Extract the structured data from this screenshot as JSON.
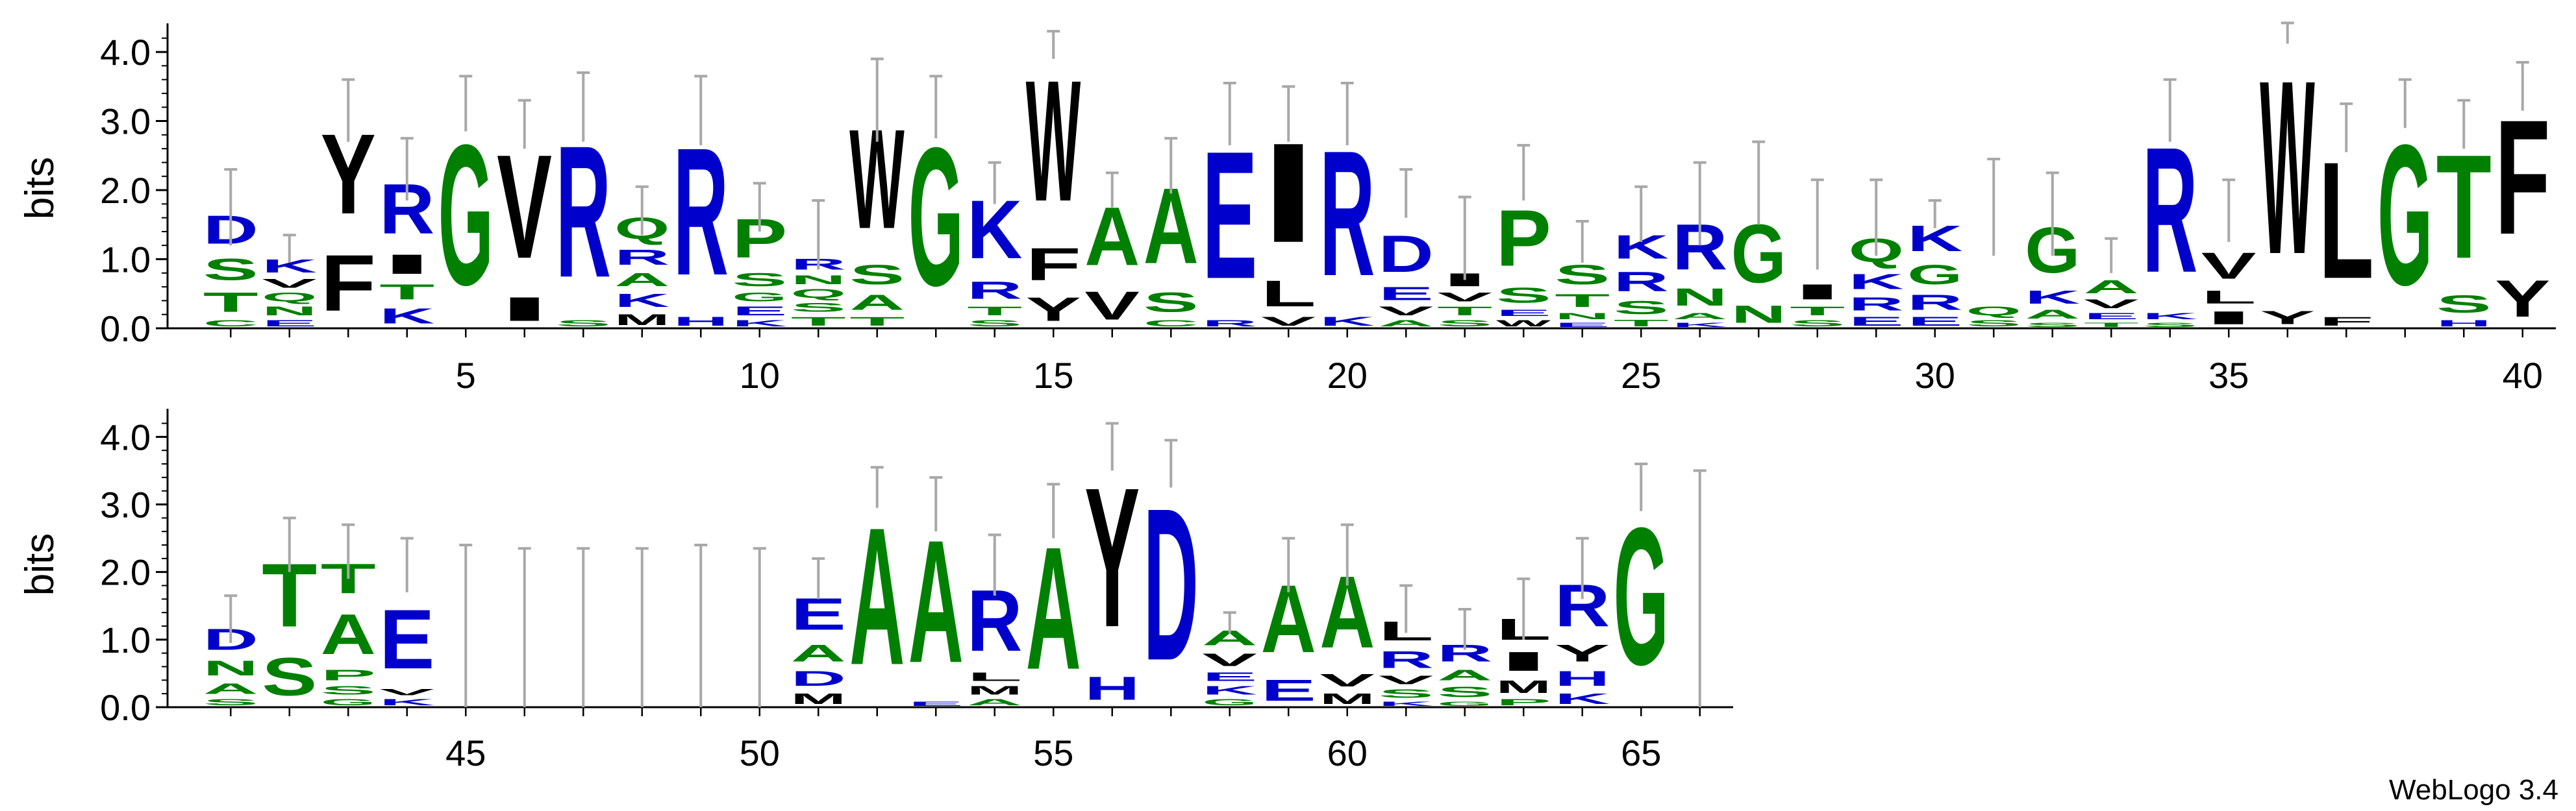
{
  "chart_data": {
    "type": "sequence-logo",
    "title": "",
    "ylabel": "bits",
    "ylim": [
      0,
      4.32
    ],
    "yticks": [
      "0.0",
      "1.0",
      "2.0",
      "3.0",
      "4.0"
    ],
    "credit": "WebLogo 3.4",
    "colors": {
      "G": "#008000",
      "S": "#008000",
      "T": "#008000",
      "Y": "#008000",
      "C": "#008000",
      "N": "#008000",
      "Q": "#008000",
      "K": "#0000cc",
      "R": "#0000cc",
      "H": "#0000cc",
      "D": "#0000cc",
      "E": "#0000cc",
      "A": "#008000",
      "V": "#000000",
      "L": "#000000",
      "I": "#000000",
      "P": "#008000",
      "W": "#000000",
      "F": "#000000",
      "M": "#000000",
      "ink": "#000000",
      "errorbar": "#a8a8a8"
    },
    "color_overrides": {
      "Y": "#000000",
      "A": "#008000",
      "P": "#008000",
      "W": "#000000",
      "F": "#000000"
    },
    "rows": [
      {
        "first": 1,
        "last": 40,
        "xticks": [
          "5",
          "10",
          "15",
          "20",
          "25",
          "30",
          "35",
          "40"
        ]
      },
      {
        "first": 41,
        "last": 66,
        "xticks": [
          "45",
          "50",
          "55",
          "60",
          "65"
        ]
      }
    ],
    "positions": [
      {
        "pos": 1,
        "total": 1.75,
        "err": 0.55,
        "stack": [
          [
            "C",
            0.15
          ],
          [
            "T",
            0.45
          ],
          [
            "S",
            0.5
          ],
          [
            "D",
            0.65
          ]
        ]
      },
      {
        "pos": 2,
        "total": 1.15,
        "err": 0.2,
        "stack": [
          [
            "E",
            0.15
          ],
          [
            "N",
            0.2
          ],
          [
            "Q",
            0.2
          ],
          [
            "V",
            0.2
          ],
          [
            "K",
            0.3
          ]
        ]
      },
      {
        "pos": 3,
        "total": 3.15,
        "err": 0.45,
        "stack": [
          [
            "F",
            1.3
          ],
          [
            "Y",
            1.85
          ]
        ]
      },
      {
        "pos": 4,
        "total": 2.3,
        "err": 0.45,
        "stack": [
          [
            "K",
            0.35
          ],
          [
            "T",
            0.35
          ],
          [
            "I",
            0.45
          ],
          [
            "R",
            1.15
          ]
        ]
      },
      {
        "pos": 5,
        "total": 3.25,
        "err": 0.4,
        "stack": [
          [
            "G",
            3.25
          ]
        ]
      },
      {
        "pos": 6,
        "total": 2.95,
        "err": 0.35,
        "stack": [
          [
            "I",
            0.55
          ],
          [
            "V",
            2.4
          ]
        ]
      },
      {
        "pos": 7,
        "total": 3.2,
        "err": 0.5,
        "stack": [
          [
            "S",
            0.15
          ],
          [
            "R",
            3.05
          ]
        ]
      },
      {
        "pos": 8,
        "total": 1.7,
        "err": 0.35,
        "stack": [
          [
            "M",
            0.25
          ],
          [
            "K",
            0.3
          ],
          [
            "A",
            0.3
          ],
          [
            "R",
            0.35
          ],
          [
            "Q",
            0.5
          ]
        ]
      },
      {
        "pos": 9,
        "total": 3.15,
        "err": 0.5,
        "stack": [
          [
            "H",
            0.2
          ],
          [
            "R",
            2.95
          ]
        ]
      },
      {
        "pos": 10,
        "total": 1.75,
        "err": 0.35,
        "stack": [
          [
            "K",
            0.15
          ],
          [
            "E",
            0.2
          ],
          [
            "G",
            0.2
          ],
          [
            "S",
            0.3
          ],
          [
            "P",
            0.9
          ]
        ]
      },
      {
        "pos": 11,
        "total": 1.35,
        "err": 0.5,
        "stack": [
          [
            "T",
            0.2
          ],
          [
            "S",
            0.2
          ],
          [
            "Q",
            0.2
          ],
          [
            "N",
            0.2
          ],
          [
            "R",
            0.25
          ]
        ]
      },
      {
        "pos": 12,
        "total": 3.3,
        "err": 0.6,
        "stack": [
          [
            "T",
            0.2
          ],
          [
            "A",
            0.35
          ],
          [
            "S",
            0.45
          ],
          [
            "W",
            2.3
          ]
        ]
      },
      {
        "pos": 13,
        "total": 3.2,
        "err": 0.45,
        "stack": [
          [
            "G",
            3.2
          ]
        ]
      },
      {
        "pos": 14,
        "total": 2.1,
        "err": 0.3,
        "stack": [
          [
            "S",
            0.15
          ],
          [
            "T",
            0.2
          ],
          [
            "R",
            0.4
          ],
          [
            "K",
            1.35
          ]
        ]
      },
      {
        "pos": 15,
        "total": 4.1,
        "err": 0.2,
        "stack": [
          [
            "Y",
            0.55
          ],
          [
            "F",
            0.75
          ],
          [
            "W",
            2.8
          ]
        ]
      },
      {
        "pos": 16,
        "total": 2.0,
        "err": 0.25,
        "stack": [
          [
            "V",
            0.65
          ],
          [
            "A",
            1.35
          ]
        ]
      },
      {
        "pos": 17,
        "total": 2.35,
        "err": 0.4,
        "stack": [
          [
            "C",
            0.15
          ],
          [
            "S",
            0.45
          ],
          [
            "A",
            1.75
          ]
        ]
      },
      {
        "pos": 18,
        "total": 3.1,
        "err": 0.45,
        "stack": [
          [
            "R",
            0.15
          ],
          [
            "E",
            2.95
          ]
        ]
      },
      {
        "pos": 19,
        "total": 3.1,
        "err": 0.4,
        "stack": [
          [
            "V",
            0.2
          ],
          [
            "L",
            0.6
          ],
          [
            "I",
            2.3
          ]
        ]
      },
      {
        "pos": 20,
        "total": 3.1,
        "err": 0.45,
        "stack": [
          [
            "K",
            0.2
          ],
          [
            "R",
            2.9
          ]
        ]
      },
      {
        "pos": 21,
        "total": 1.95,
        "err": 0.35,
        "stack": [
          [
            "A",
            0.15
          ],
          [
            "V",
            0.2
          ],
          [
            "E",
            0.3
          ],
          [
            "D",
            0.85
          ]
        ]
      },
      {
        "pos": 22,
        "total": 1.3,
        "err": 0.6,
        "stack": [
          [
            "S",
            0.15
          ],
          [
            "T",
            0.2
          ],
          [
            "V",
            0.2
          ],
          [
            "I",
            0.3
          ]
        ]
      },
      {
        "pos": 23,
        "total": 2.25,
        "err": 0.4,
        "stack": [
          [
            "W",
            0.15
          ],
          [
            "E",
            0.15
          ],
          [
            "S",
            0.35
          ],
          [
            "P",
            1.3
          ]
        ]
      },
      {
        "pos": 24,
        "total": 1.25,
        "err": 0.3,
        "stack": [
          [
            "E",
            0.1
          ],
          [
            "N",
            0.15
          ],
          [
            "T",
            0.3
          ],
          [
            "S",
            0.45
          ]
        ]
      },
      {
        "pos": 25,
        "total": 1.65,
        "err": 0.4,
        "stack": [
          [
            "T",
            0.15
          ],
          [
            "S",
            0.3
          ],
          [
            "R",
            0.45
          ],
          [
            "K",
            0.55
          ]
        ]
      },
      {
        "pos": 26,
        "total": 1.8,
        "err": 0.6,
        "stack": [
          [
            "K",
            0.1
          ],
          [
            "A",
            0.15
          ],
          [
            "N",
            0.4
          ],
          [
            "R",
            1.05
          ]
        ]
      },
      {
        "pos": 27,
        "total": 2.1,
        "err": 0.6,
        "stack": [
          [
            "N",
            0.4
          ],
          [
            "G",
            1.35
          ]
        ]
      },
      {
        "pos": 28,
        "total": 1.5,
        "err": 0.65,
        "stack": [
          [
            "S",
            0.15
          ],
          [
            "T",
            0.2
          ],
          [
            "I",
            0.35
          ]
        ]
      },
      {
        "pos": 29,
        "total": 1.6,
        "err": 0.55,
        "stack": [
          [
            "E",
            0.2
          ],
          [
            "R",
            0.3
          ],
          [
            "K",
            0.35
          ],
          [
            "Q",
            0.55
          ]
        ]
      },
      {
        "pos": 30,
        "total": 1.65,
        "err": 0.2,
        "stack": [
          [
            "E",
            0.2
          ],
          [
            "R",
            0.35
          ],
          [
            "G",
            0.45
          ],
          [
            "K",
            0.6
          ]
        ]
      },
      {
        "pos": 31,
        "total": 1.75,
        "err": 0.7,
        "stack": [
          [
            "S",
            0.15
          ],
          [
            "Q",
            0.2
          ]
        ]
      },
      {
        "pos": 32,
        "total": 1.65,
        "err": 0.6,
        "stack": [
          [
            "S",
            0.1
          ],
          [
            "A",
            0.2
          ],
          [
            "K",
            0.3
          ],
          [
            "G",
            1.05
          ]
        ]
      },
      {
        "pos": 33,
        "total": 1.05,
        "err": 0.25,
        "stack": [
          [
            "T",
            0.1
          ],
          [
            "E",
            0.15
          ],
          [
            "V",
            0.2
          ],
          [
            "A",
            0.3
          ]
        ]
      },
      {
        "pos": 34,
        "total": 3.15,
        "err": 0.45,
        "stack": [
          [
            "S",
            0.1
          ],
          [
            "K",
            0.15
          ],
          [
            "R",
            2.9
          ]
        ]
      },
      {
        "pos": 35,
        "total": 1.7,
        "err": 0.45,
        "stack": [
          [
            "I",
            0.3
          ],
          [
            "L",
            0.3
          ],
          [
            "V",
            0.6
          ]
        ]
      },
      {
        "pos": 36,
        "total": 4.32,
        "err": 0.2,
        "stack": [
          [
            "Y",
            0.3
          ],
          [
            "W",
            4.02
          ]
        ]
      },
      {
        "pos": 37,
        "total": 2.9,
        "err": 0.35,
        "stack": [
          [
            "F",
            0.2
          ],
          [
            "L",
            2.7
          ]
        ]
      },
      {
        "pos": 38,
        "total": 3.25,
        "err": 0.35,
        "stack": [
          [
            "G",
            3.25
          ]
        ]
      },
      {
        "pos": 39,
        "total": 2.95,
        "err": 0.35,
        "stack": [
          [
            "H",
            0.15
          ],
          [
            "S",
            0.4
          ],
          [
            "T",
            2.4
          ]
        ]
      },
      {
        "pos": 40,
        "total": 3.5,
        "err": 0.35,
        "stack": [
          [
            "Y",
            0.85
          ],
          [
            "F",
            2.65
          ]
        ]
      },
      {
        "pos": 41,
        "total": 1.3,
        "err": 0.35,
        "stack": [
          [
            "S",
            0.15
          ],
          [
            "A",
            0.25
          ],
          [
            "N",
            0.35
          ],
          [
            "D",
            0.5
          ]
        ]
      },
      {
        "pos": 42,
        "total": 2.4,
        "err": 0.4,
        "stack": [
          [
            "S",
            0.9
          ],
          [
            "T",
            1.5
          ]
        ]
      },
      {
        "pos": 43,
        "total": 2.3,
        "err": 0.4,
        "stack": [
          [
            "G",
            0.15
          ],
          [
            "S",
            0.2
          ],
          [
            "P",
            0.25
          ],
          [
            "A",
            0.95
          ],
          [
            "T",
            0.7
          ]
        ]
      },
      {
        "pos": 44,
        "total": 2.1,
        "err": 0.4,
        "stack": [
          [
            "K",
            0.15
          ],
          [
            "V",
            0.15
          ],
          [
            "E",
            1.4
          ]
        ]
      },
      {
        "pos": 45,
        "total": 0.05,
        "err": 2.35,
        "stack": []
      },
      {
        "pos": 46,
        "total": 0.05,
        "err": 2.3,
        "stack": []
      },
      {
        "pos": 47,
        "total": 0.05,
        "err": 2.3,
        "stack": []
      },
      {
        "pos": 48,
        "total": 0.05,
        "err": 2.3,
        "stack": []
      },
      {
        "pos": 49,
        "total": 0.05,
        "err": 2.35,
        "stack": []
      },
      {
        "pos": 50,
        "total": 0.05,
        "err": 2.3,
        "stack": []
      },
      {
        "pos": 51,
        "total": 1.9,
        "err": 0.3,
        "stack": [
          [
            "M",
            0.25
          ],
          [
            "D",
            0.35
          ],
          [
            "A",
            0.4
          ],
          [
            "E",
            0.75
          ]
        ]
      },
      {
        "pos": 52,
        "total": 3.25,
        "err": 0.3,
        "stack": [
          [
            "A",
            3.25
          ]
        ]
      },
      {
        "pos": 53,
        "total": 3.0,
        "err": 0.4,
        "stack": [
          [
            "E",
            0.1
          ],
          [
            "A",
            2.9
          ]
        ]
      },
      {
        "pos": 54,
        "total": 2.1,
        "err": 0.45,
        "stack": [
          [
            "A",
            0.15
          ],
          [
            "M",
            0.2
          ],
          [
            "L",
            0.2
          ],
          [
            "R",
            1.45
          ]
        ]
      },
      {
        "pos": 55,
        "total": 2.9,
        "err": 0.4,
        "stack": [
          [
            "A",
            2.9
          ]
        ]
      },
      {
        "pos": 56,
        "total": 3.85,
        "err": 0.35,
        "stack": [
          [
            "H",
            0.55
          ],
          [
            "Y",
            3.3
          ]
        ]
      },
      {
        "pos": 57,
        "total": 3.6,
        "err": 0.35,
        "stack": [
          [
            "D",
            3.6
          ]
        ]
      },
      {
        "pos": 58,
        "total": 1.25,
        "err": 0.15,
        "stack": [
          [
            "G",
            0.15
          ],
          [
            "K",
            0.2
          ],
          [
            "E",
            0.2
          ],
          [
            "V",
            0.3
          ],
          [
            "A",
            0.35
          ]
        ]
      },
      {
        "pos": 59,
        "total": 2.1,
        "err": 0.4,
        "stack": [
          [
            "E",
            0.5
          ],
          [
            "A",
            1.6
          ]
        ]
      },
      {
        "pos": 60,
        "total": 2.25,
        "err": 0.45,
        "stack": [
          [
            "M",
            0.25
          ],
          [
            "V",
            0.3
          ],
          [
            "A",
            1.7
          ]
        ]
      },
      {
        "pos": 61,
        "total": 1.45,
        "err": 0.35,
        "stack": [
          [
            "K",
            0.1
          ],
          [
            "S",
            0.2
          ],
          [
            "V",
            0.2
          ],
          [
            "R",
            0.4
          ],
          [
            "L",
            0.45
          ]
        ]
      },
      {
        "pos": 62,
        "total": 1.15,
        "err": 0.3,
        "stack": [
          [
            "G",
            0.1
          ],
          [
            "S",
            0.25
          ],
          [
            "A",
            0.25
          ],
          [
            "R",
            0.4
          ]
        ]
      },
      {
        "pos": 63,
        "total": 1.45,
        "err": 0.45,
        "stack": [
          [
            "P",
            0.15
          ],
          [
            "M",
            0.3
          ],
          [
            "I",
            0.45
          ],
          [
            "L",
            0.5
          ]
        ]
      },
      {
        "pos": 64,
        "total": 2.05,
        "err": 0.45,
        "stack": [
          [
            "K",
            0.25
          ],
          [
            "H",
            0.35
          ],
          [
            "Y",
            0.4
          ],
          [
            "R",
            1.0
          ]
        ]
      },
      {
        "pos": 65,
        "total": 3.25,
        "err": 0.35,
        "stack": [
          [
            "G",
            3.25
          ]
        ]
      },
      {
        "pos": 66,
        "total": 0.05,
        "err": 3.45,
        "stack": []
      }
    ]
  }
}
